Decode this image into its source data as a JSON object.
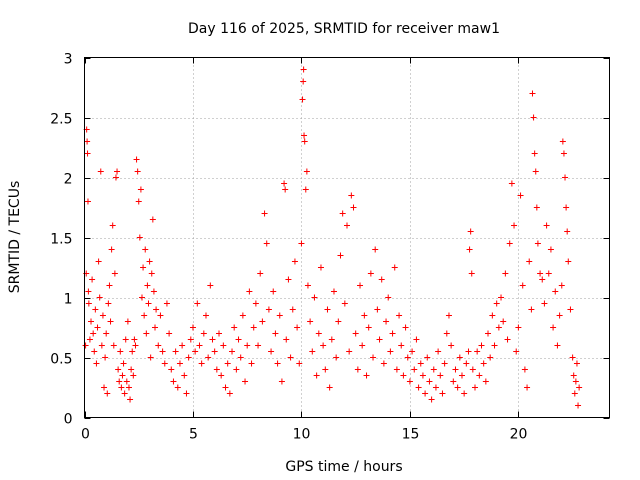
{
  "chart_data": {
    "type": "scatter",
    "title": "Day 116 of 2025, SRMTID for receiver maw1",
    "xlabel": "GPS time / hours",
    "ylabel": "SRMTID / TECUs",
    "xlim": [
      0,
      24.2
    ],
    "ylim": [
      0,
      3
    ],
    "xticks": [
      0,
      5,
      10,
      15,
      20
    ],
    "xtick_labels": [
      "0",
      "5",
      "10",
      "15",
      "20"
    ],
    "yticks": [
      0,
      0.5,
      1,
      1.5,
      2,
      2.5,
      3
    ],
    "ytick_labels": [
      "0",
      "0.5",
      "1",
      "1.5",
      "2",
      "2.5",
      "3"
    ],
    "grid": true,
    "marker": "+",
    "color": "#ff0000",
    "series": [
      {
        "name": "SRMTID",
        "points": [
          [
            0.05,
            0.6
          ],
          [
            0.08,
            1.2
          ],
          [
            0.1,
            2.4
          ],
          [
            0.12,
            2.3
          ],
          [
            0.14,
            2.2
          ],
          [
            0.16,
            1.8
          ],
          [
            0.18,
            1.05
          ],
          [
            0.2,
            0.95
          ],
          [
            0.25,
            0.65
          ],
          [
            0.3,
            0.8
          ],
          [
            0.35,
            1.15
          ],
          [
            0.4,
            0.7
          ],
          [
            0.45,
            0.55
          ],
          [
            0.5,
            0.9
          ],
          [
            0.55,
            0.45
          ],
          [
            0.6,
            0.75
          ],
          [
            0.65,
            1.3
          ],
          [
            0.7,
            1.0
          ],
          [
            0.75,
            2.05
          ],
          [
            0.8,
            0.6
          ],
          [
            0.85,
            0.85
          ],
          [
            0.9,
            0.25
          ],
          [
            0.95,
            0.5
          ],
          [
            1.0,
            0.7
          ],
          [
            1.05,
            0.2
          ],
          [
            1.1,
            0.95
          ],
          [
            1.15,
            1.1
          ],
          [
            1.2,
            0.8
          ],
          [
            1.25,
            1.4
          ],
          [
            1.3,
            1.6
          ],
          [
            1.35,
            0.6
          ],
          [
            1.4,
            1.2
          ],
          [
            1.45,
            2.0
          ],
          [
            1.5,
            2.05
          ],
          [
            1.55,
            0.4
          ],
          [
            1.6,
            0.3
          ],
          [
            1.65,
            0.55
          ],
          [
            1.7,
            0.25
          ],
          [
            1.75,
            0.35
          ],
          [
            1.8,
            0.45
          ],
          [
            1.85,
            0.2
          ],
          [
            1.9,
            0.65
          ],
          [
            1.95,
            0.3
          ],
          [
            2.0,
            0.8
          ],
          [
            2.05,
            0.25
          ],
          [
            2.1,
            0.15
          ],
          [
            2.15,
            0.4
          ],
          [
            2.2,
            0.55
          ],
          [
            2.25,
            0.35
          ],
          [
            2.3,
            0.65
          ],
          [
            2.35,
            0.6
          ],
          [
            2.4,
            2.15
          ],
          [
            2.45,
            2.05
          ],
          [
            2.5,
            1.8
          ],
          [
            2.55,
            1.5
          ],
          [
            2.6,
            1.9
          ],
          [
            2.65,
            1.0
          ],
          [
            2.7,
            1.25
          ],
          [
            2.75,
            0.85
          ],
          [
            2.8,
            1.4
          ],
          [
            2.85,
            0.7
          ],
          [
            2.9,
            1.1
          ],
          [
            2.95,
            0.95
          ],
          [
            3.0,
            1.3
          ],
          [
            3.05,
            0.5
          ],
          [
            3.1,
            1.2
          ],
          [
            3.15,
            1.65
          ],
          [
            3.2,
            1.05
          ],
          [
            3.25,
            0.75
          ],
          [
            3.3,
            0.9
          ],
          [
            3.4,
            0.6
          ],
          [
            3.5,
            0.85
          ],
          [
            3.6,
            0.55
          ],
          [
            3.7,
            0.45
          ],
          [
            3.8,
            0.95
          ],
          [
            3.9,
            0.7
          ],
          [
            4.0,
            0.4
          ],
          [
            4.1,
            0.3
          ],
          [
            4.2,
            0.55
          ],
          [
            4.3,
            0.25
          ],
          [
            4.4,
            0.45
          ],
          [
            4.5,
            0.6
          ],
          [
            4.6,
            0.35
          ],
          [
            4.7,
            0.2
          ],
          [
            4.8,
            0.5
          ],
          [
            4.9,
            0.65
          ],
          [
            5.0,
            0.75
          ],
          [
            5.1,
            0.55
          ],
          [
            5.2,
            0.95
          ],
          [
            5.3,
            0.6
          ],
          [
            5.4,
            0.45
          ],
          [
            5.5,
            0.7
          ],
          [
            5.6,
            0.85
          ],
          [
            5.7,
            0.5
          ],
          [
            5.8,
            1.1
          ],
          [
            5.9,
            0.65
          ],
          [
            6.0,
            0.55
          ],
          [
            6.1,
            0.4
          ],
          [
            6.2,
            0.7
          ],
          [
            6.3,
            0.35
          ],
          [
            6.4,
            0.6
          ],
          [
            6.5,
            0.25
          ],
          [
            6.6,
            0.45
          ],
          [
            6.7,
            0.2
          ],
          [
            6.8,
            0.55
          ],
          [
            6.9,
            0.75
          ],
          [
            7.0,
            0.4
          ],
          [
            7.1,
            0.65
          ],
          [
            7.2,
            0.5
          ],
          [
            7.3,
            0.85
          ],
          [
            7.4,
            0.3
          ],
          [
            7.5,
            0.6
          ],
          [
            7.6,
            1.05
          ],
          [
            7.7,
            0.45
          ],
          [
            7.8,
            0.75
          ],
          [
            7.9,
            0.95
          ],
          [
            8.0,
            0.6
          ],
          [
            8.1,
            1.2
          ],
          [
            8.2,
            0.8
          ],
          [
            8.3,
            1.7
          ],
          [
            8.4,
            1.45
          ],
          [
            8.5,
            0.9
          ],
          [
            8.6,
            0.55
          ],
          [
            8.7,
            1.05
          ],
          [
            8.8,
            0.7
          ],
          [
            8.9,
            0.45
          ],
          [
            9.0,
            0.85
          ],
          [
            9.1,
            0.3
          ],
          [
            9.2,
            1.95
          ],
          [
            9.25,
            1.9
          ],
          [
            9.3,
            0.65
          ],
          [
            9.4,
            1.15
          ],
          [
            9.5,
            0.5
          ],
          [
            9.6,
            0.9
          ],
          [
            9.7,
            1.3
          ],
          [
            9.8,
            0.75
          ],
          [
            9.9,
            0.45
          ],
          [
            10.0,
            1.45
          ],
          [
            10.05,
            2.65
          ],
          [
            10.08,
            2.8
          ],
          [
            10.1,
            2.9
          ],
          [
            10.12,
            2.35
          ],
          [
            10.15,
            2.3
          ],
          [
            10.2,
            1.9
          ],
          [
            10.25,
            2.05
          ],
          [
            10.3,
            1.1
          ],
          [
            10.4,
            0.8
          ],
          [
            10.5,
            0.55
          ],
          [
            10.6,
            1.0
          ],
          [
            10.7,
            0.35
          ],
          [
            10.8,
            0.7
          ],
          [
            10.9,
            1.25
          ],
          [
            11.0,
            0.6
          ],
          [
            11.1,
            0.4
          ],
          [
            11.2,
            0.9
          ],
          [
            11.3,
            0.25
          ],
          [
            11.4,
            0.65
          ],
          [
            11.5,
            1.05
          ],
          [
            11.6,
            0.5
          ],
          [
            11.7,
            0.8
          ],
          [
            11.8,
            1.35
          ],
          [
            11.9,
            1.7
          ],
          [
            12.0,
            0.95
          ],
          [
            12.1,
            1.6
          ],
          [
            12.2,
            0.55
          ],
          [
            12.3,
            1.85
          ],
          [
            12.4,
            1.75
          ],
          [
            12.5,
            0.7
          ],
          [
            12.6,
            0.4
          ],
          [
            12.7,
            1.1
          ],
          [
            12.8,
            0.6
          ],
          [
            12.9,
            0.85
          ],
          [
            13.0,
            0.35
          ],
          [
            13.1,
            0.75
          ],
          [
            13.2,
            1.2
          ],
          [
            13.3,
            0.5
          ],
          [
            13.4,
            1.4
          ],
          [
            13.5,
            0.9
          ],
          [
            13.6,
            0.65
          ],
          [
            13.7,
            1.15
          ],
          [
            13.8,
            0.45
          ],
          [
            13.9,
            0.8
          ],
          [
            14.0,
            1.0
          ],
          [
            14.1,
            0.55
          ],
          [
            14.2,
            0.7
          ],
          [
            14.3,
            1.25
          ],
          [
            14.4,
            0.4
          ],
          [
            14.5,
            0.85
          ],
          [
            14.6,
            0.6
          ],
          [
            14.7,
            0.35
          ],
          [
            14.8,
            0.75
          ],
          [
            14.9,
            0.5
          ],
          [
            15.0,
            0.3
          ],
          [
            15.1,
            0.55
          ],
          [
            15.2,
            0.4
          ],
          [
            15.3,
            0.65
          ],
          [
            15.4,
            0.25
          ],
          [
            15.5,
            0.45
          ],
          [
            15.6,
            0.35
          ],
          [
            15.7,
            0.2
          ],
          [
            15.8,
            0.5
          ],
          [
            15.9,
            0.3
          ],
          [
            16.0,
            0.15
          ],
          [
            16.1,
            0.4
          ],
          [
            16.2,
            0.25
          ],
          [
            16.3,
            0.55
          ],
          [
            16.4,
            0.35
          ],
          [
            16.5,
            0.2
          ],
          [
            16.6,
            0.45
          ],
          [
            16.7,
            0.7
          ],
          [
            16.8,
            0.85
          ],
          [
            16.9,
            0.6
          ],
          [
            17.0,
            0.3
          ],
          [
            17.1,
            0.4
          ],
          [
            17.2,
            0.25
          ],
          [
            17.3,
            0.5
          ],
          [
            17.4,
            0.35
          ],
          [
            17.5,
            0.2
          ],
          [
            17.6,
            0.45
          ],
          [
            17.7,
            0.55
          ],
          [
            17.75,
            1.4
          ],
          [
            17.8,
            1.55
          ],
          [
            17.85,
            1.2
          ],
          [
            17.9,
            0.4
          ],
          [
            18.0,
            0.25
          ],
          [
            18.1,
            0.55
          ],
          [
            18.2,
            0.35
          ],
          [
            18.3,
            0.6
          ],
          [
            18.4,
            0.45
          ],
          [
            18.5,
            0.3
          ],
          [
            18.6,
            0.7
          ],
          [
            18.7,
            0.5
          ],
          [
            18.8,
            0.85
          ],
          [
            18.9,
            0.6
          ],
          [
            19.0,
            0.95
          ],
          [
            19.1,
            0.75
          ],
          [
            19.2,
            1.0
          ],
          [
            19.3,
            0.8
          ],
          [
            19.4,
            1.2
          ],
          [
            19.5,
            0.65
          ],
          [
            19.6,
            1.45
          ],
          [
            19.7,
            1.95
          ],
          [
            19.8,
            1.6
          ],
          [
            19.9,
            0.55
          ],
          [
            20.0,
            0.75
          ],
          [
            20.1,
            1.85
          ],
          [
            20.2,
            1.1
          ],
          [
            20.3,
            0.4
          ],
          [
            20.4,
            0.25
          ],
          [
            20.5,
            1.3
          ],
          [
            20.6,
            0.9
          ],
          [
            20.65,
            2.7
          ],
          [
            20.7,
            2.5
          ],
          [
            20.75,
            2.2
          ],
          [
            20.8,
            2.05
          ],
          [
            20.85,
            1.75
          ],
          [
            20.9,
            1.45
          ],
          [
            21.0,
            1.2
          ],
          [
            21.1,
            1.15
          ],
          [
            21.2,
            0.95
          ],
          [
            21.3,
            1.6
          ],
          [
            21.4,
            1.2
          ],
          [
            21.5,
            1.4
          ],
          [
            21.6,
            0.75
          ],
          [
            21.7,
            1.05
          ],
          [
            21.8,
            0.6
          ],
          [
            21.9,
            0.85
          ],
          [
            22.0,
            1.1
          ],
          [
            22.05,
            2.3
          ],
          [
            22.1,
            2.2
          ],
          [
            22.15,
            2.0
          ],
          [
            22.2,
            1.75
          ],
          [
            22.25,
            1.55
          ],
          [
            22.3,
            1.3
          ],
          [
            22.4,
            0.9
          ],
          [
            22.5,
            0.5
          ],
          [
            22.55,
            0.35
          ],
          [
            22.6,
            0.2
          ],
          [
            22.65,
            0.3
          ],
          [
            22.7,
            0.45
          ],
          [
            22.75,
            0.1
          ],
          [
            22.8,
            0.25
          ]
        ]
      }
    ]
  }
}
